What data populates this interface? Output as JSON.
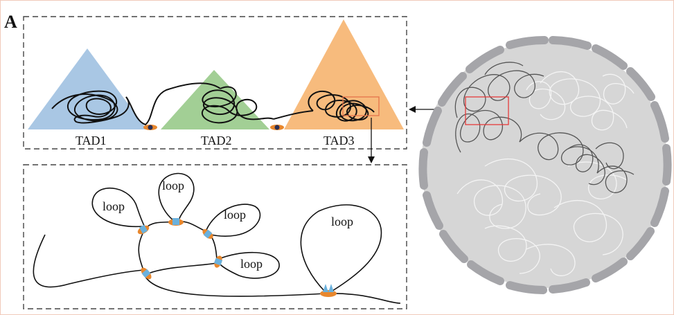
{
  "panel": {
    "label": "A"
  },
  "tads": [
    {
      "label": "TAD1",
      "color": "#a9c7e4"
    },
    {
      "label": "TAD2",
      "color": "#a2cf95"
    },
    {
      "label": "TAD3",
      "color": "#f7bb7d"
    }
  ],
  "loops": [
    "loop",
    "loop",
    "loop",
    "loop",
    "loop"
  ],
  "colors": {
    "chromatin": "#111111",
    "anchor_orange": "#e8872d",
    "anchor_blue": "#6ab1dd",
    "nucleus_fill": "#d6d6d6",
    "nucleus_envelope": "#a5a5a9",
    "zoom_box": "#e53b3b"
  }
}
